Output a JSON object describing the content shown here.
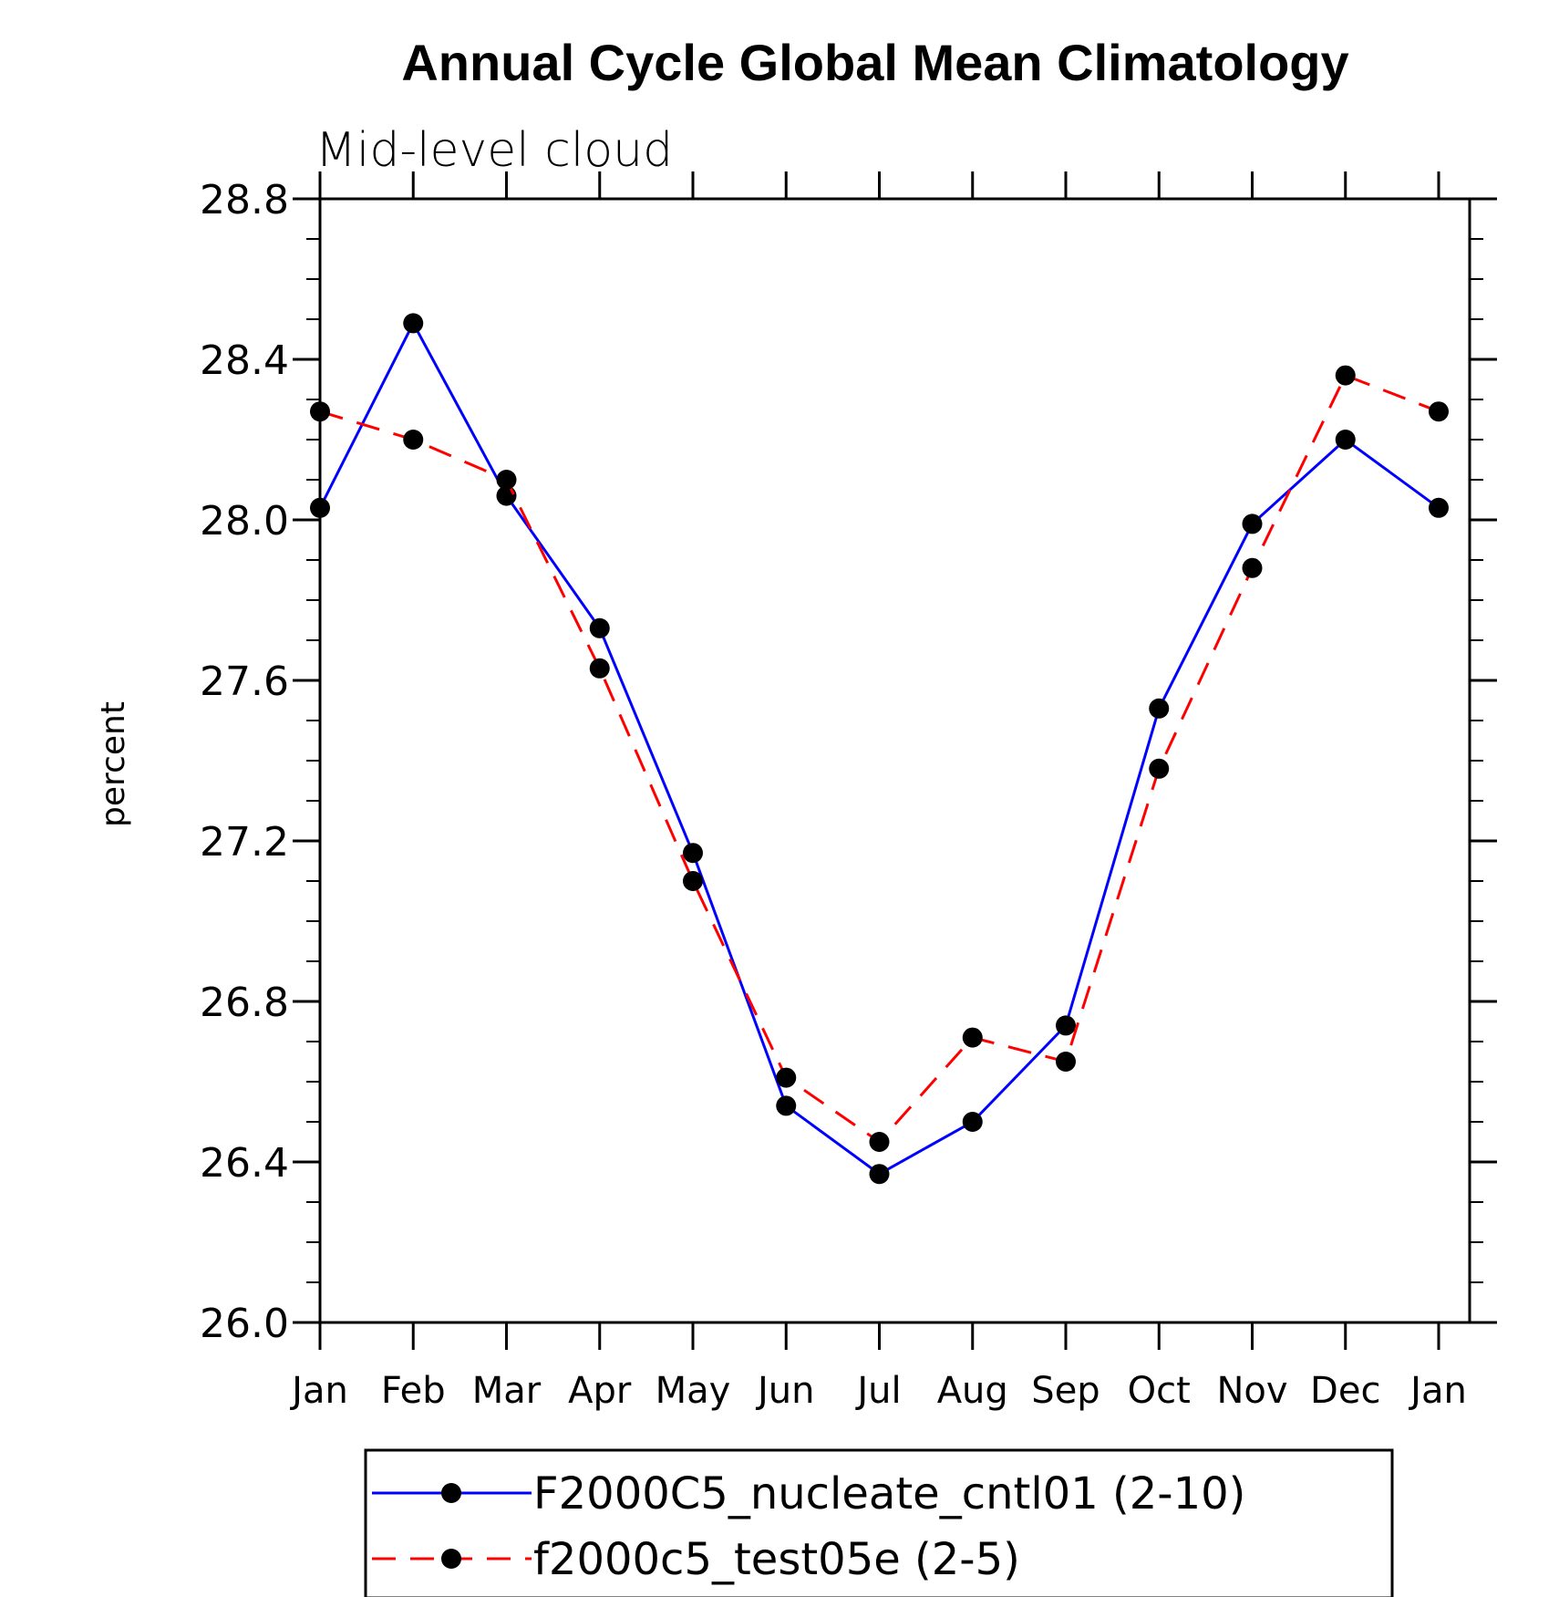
{
  "chart_data": {
    "type": "line",
    "title": "Annual Cycle Global Mean Climatology",
    "subtitle": "Mid-level cloud",
    "xlabel": "",
    "ylabel": "percent",
    "categories": [
      "Jan",
      "Feb",
      "Mar",
      "Apr",
      "May",
      "Jun",
      "Jul",
      "Aug",
      "Sep",
      "Oct",
      "Nov",
      "Dec",
      "Jan"
    ],
    "ylim": [
      26.0,
      28.8
    ],
    "yticks": [
      "26.0",
      "26.4",
      "26.8",
      "27.2",
      "27.6",
      "28.0",
      "28.4",
      "28.8"
    ],
    "grid": false,
    "legend_position": "bottom",
    "series": [
      {
        "name": "F2000C5_nucleate_cntl01 (2-10)",
        "color": "#0000ff",
        "line_style": "solid",
        "marker": "filled-circle",
        "values": [
          28.03,
          28.49,
          28.06,
          27.73,
          27.17,
          26.54,
          26.37,
          26.5,
          26.74,
          27.53,
          27.99,
          28.2,
          28.03
        ]
      },
      {
        "name": "f2000c5_test05e (2-5)",
        "color": "#ff0000",
        "line_style": "dashed",
        "marker": "filled-circle",
        "values": [
          28.27,
          28.2,
          28.1,
          27.63,
          27.1,
          26.61,
          26.45,
          26.71,
          26.65,
          27.38,
          27.88,
          28.36,
          28.27
        ]
      }
    ]
  }
}
